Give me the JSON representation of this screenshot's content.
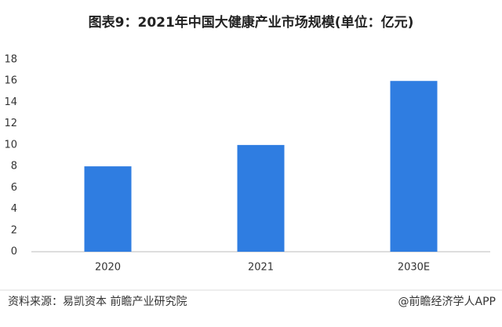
{
  "chart_data": {
    "type": "bar",
    "title": "图表9：2021年中国大健康产业市场规模(单位：亿元)",
    "categories": [
      "2020",
      "2021",
      "2030E"
    ],
    "values": [
      8,
      10,
      16
    ],
    "color": "#2f7de1",
    "ylim": [
      0,
      18
    ],
    "yticks": [
      0,
      2,
      4,
      6,
      8,
      10,
      12,
      14,
      16,
      18
    ],
    "grid": false,
    "source": "资料来源：易凯资本 前瞻产业研究院",
    "credit": "@前瞻经济学人APP"
  }
}
